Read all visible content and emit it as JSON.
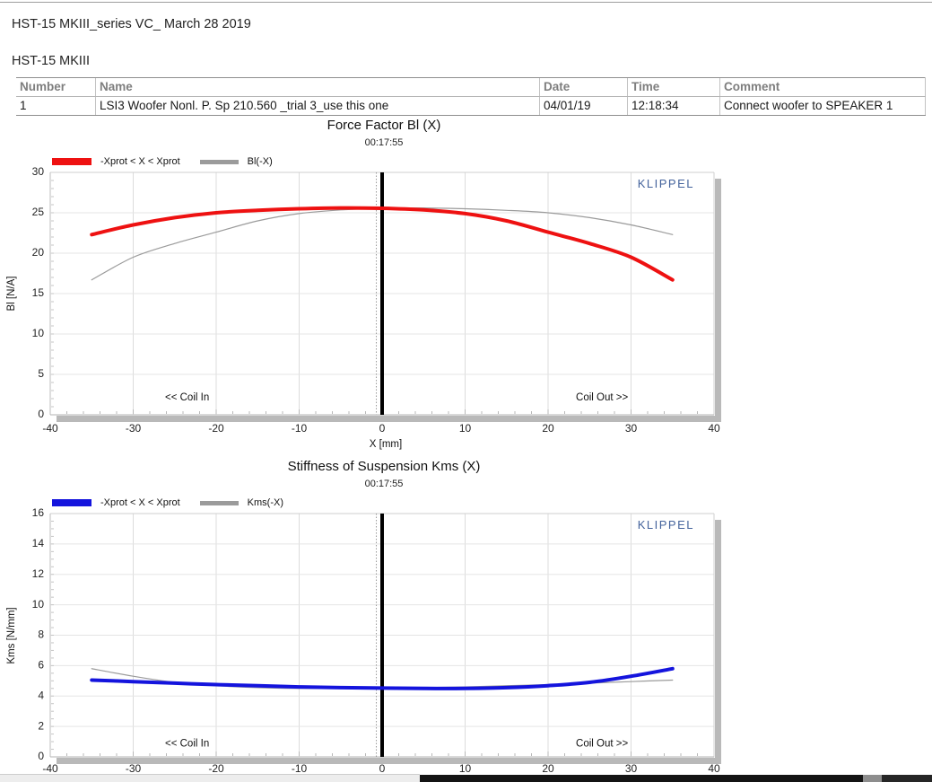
{
  "page": {
    "title": "HST-15 MKIII_series VC_ March 28 2019",
    "section_title": "HST-15 MKIII"
  },
  "table": {
    "headers": [
      "Number",
      "Name",
      "Date",
      "Time",
      "Comment"
    ],
    "rows": [
      {
        "number": "1",
        "name": "LSI3 Woofer Nonl. P. Sp 210.560 _trial 3_use this one",
        "date": "04/01/19",
        "time": "12:18:34",
        "comment": "Connect woofer to SPEAKER 1"
      }
    ]
  },
  "chart_data": [
    {
      "type": "line",
      "title": "Force Factor Bl (X)",
      "subtitle": "00:17:55",
      "xlabel": "X [mm]",
      "ylabel": "Bl [N/A]",
      "xlim": [
        -40,
        40
      ],
      "ylim": [
        0,
        30
      ],
      "xticks": [
        -40,
        -30,
        -20,
        -10,
        0,
        10,
        20,
        30,
        40
      ],
      "yticks": [
        0,
        5,
        10,
        15,
        20,
        25,
        30
      ],
      "grid": true,
      "legend_position": "top-left",
      "watermark": "KLIPPEL",
      "watermark_color": "#44639c",
      "marker_solid_x": 0,
      "marker_dotted_x": -0.7,
      "x": [
        -35,
        -30,
        -25,
        -20,
        -15,
        -10,
        -5,
        0,
        5,
        10,
        15,
        20,
        25,
        30,
        35
      ],
      "series": [
        {
          "name": "-Xprot < X < Xprot",
          "color": "#ee1111",
          "width": 4,
          "values": [
            22.3,
            23.5,
            24.4,
            25.0,
            25.3,
            25.5,
            25.6,
            25.55,
            25.35,
            24.9,
            24.0,
            22.6,
            21.2,
            19.5,
            16.7
          ]
        },
        {
          "name": "Bl(-X)",
          "color": "#9b9b9b",
          "width": 1.2,
          "values": [
            16.7,
            19.5,
            21.2,
            22.6,
            24.0,
            24.9,
            25.35,
            25.55,
            25.6,
            25.5,
            25.3,
            25.0,
            24.4,
            23.5,
            22.3
          ]
        }
      ],
      "annotations": [
        {
          "text": "<< Coil In",
          "x": -23.5,
          "y": 2.1
        },
        {
          "text": "Coil Out >>",
          "x": 26.5,
          "y": 2.1
        }
      ]
    },
    {
      "type": "line",
      "title": "Stiffness of Suspension Kms (X)",
      "subtitle": "00:17:55",
      "xlabel": "",
      "ylabel": "Kms [N/mm]",
      "xlim": [
        -40,
        40
      ],
      "ylim": [
        0,
        16
      ],
      "xticks": [
        -40,
        -30,
        -20,
        -10,
        0,
        10,
        20,
        30,
        40
      ],
      "yticks": [
        0,
        2,
        4,
        6,
        8,
        10,
        12,
        14,
        16
      ],
      "grid": true,
      "legend_position": "top-left",
      "watermark": "KLIPPEL",
      "watermark_color": "#44639c",
      "marker_solid_x": 0,
      "marker_dotted_x": -0.7,
      "x": [
        -35,
        -30,
        -25,
        -20,
        -15,
        -10,
        -5,
        0,
        5,
        10,
        15,
        20,
        25,
        30,
        35
      ],
      "series": [
        {
          "name": "-Xprot < X < Xprot",
          "color": "#1414dd",
          "width": 4,
          "values": [
            5.05,
            4.95,
            4.85,
            4.75,
            4.68,
            4.6,
            4.55,
            4.52,
            4.5,
            4.5,
            4.55,
            4.68,
            4.9,
            5.3,
            5.8
          ]
        },
        {
          "name": "Kms(-X)",
          "color": "#9b9b9b",
          "width": 1.2,
          "values": [
            5.8,
            5.3,
            4.9,
            4.68,
            4.55,
            4.5,
            4.5,
            4.52,
            4.55,
            4.6,
            4.68,
            4.75,
            4.85,
            4.95,
            5.05
          ]
        }
      ],
      "annotations": [
        {
          "text": "<< Coil In",
          "x": -23.5,
          "y": 0.85
        },
        {
          "text": "Coil Out >>",
          "x": 26.5,
          "y": 0.85
        }
      ]
    }
  ]
}
